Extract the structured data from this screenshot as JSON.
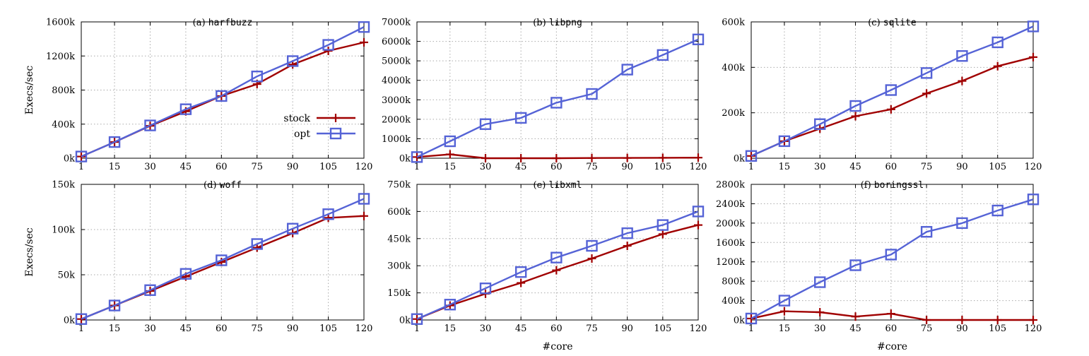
{
  "figure": {
    "ylabel": "Execs/sec",
    "xlabel": "#core",
    "legend": {
      "placement": "inside-right of panel (a)",
      "entries": [
        {
          "name": "stock",
          "color": "#a00000",
          "marker": "plus"
        },
        {
          "name": "opt",
          "color": "#5563d6",
          "marker": "square"
        }
      ]
    }
  },
  "chart_data": [
    {
      "type": "line",
      "title_prefix": "(a)",
      "title_name": "harfbuzz",
      "x": [
        1,
        15,
        30,
        45,
        60,
        75,
        90,
        105,
        120
      ],
      "xticks": [
        "1",
        "15",
        "30",
        "45",
        "60",
        "75",
        "90",
        "105",
        "120"
      ],
      "ylim": [
        0,
        1600
      ],
      "yticks": [
        0,
        400,
        800,
        1200,
        1600
      ],
      "ytick_labels": [
        "0k",
        "400k",
        "800k",
        "1200k",
        "1600k"
      ],
      "ylabel": "Execs/sec",
      "xlabel": "",
      "grid": true,
      "series": [
        {
          "name": "stock",
          "values": [
            20,
            190,
            380,
            550,
            730,
            870,
            1100,
            1260,
            1360
          ]
        },
        {
          "name": "opt",
          "values": [
            20,
            190,
            385,
            575,
            730,
            960,
            1140,
            1330,
            1540
          ]
        }
      ]
    },
    {
      "type": "line",
      "title_prefix": "(b)",
      "title_name": "libpng",
      "x": [
        1,
        15,
        30,
        45,
        60,
        75,
        90,
        105,
        120
      ],
      "xticks": [
        "1",
        "15",
        "30",
        "45",
        "60",
        "75",
        "90",
        "105",
        "120"
      ],
      "ylim": [
        0,
        7000
      ],
      "yticks": [
        0,
        1000,
        2000,
        3000,
        4000,
        5000,
        6000,
        7000
      ],
      "ytick_labels": [
        "0k",
        "1000k",
        "2000k",
        "3000k",
        "4000k",
        "5000k",
        "6000k",
        "7000k"
      ],
      "ylabel": "",
      "xlabel": "",
      "grid": true,
      "series": [
        {
          "name": "stock",
          "values": [
            60,
            200,
            0,
            0,
            0,
            10,
            15,
            20,
            30
          ]
        },
        {
          "name": "opt",
          "values": [
            60,
            870,
            1750,
            2070,
            2850,
            3300,
            4550,
            5300,
            6100
          ]
        }
      ]
    },
    {
      "type": "line",
      "title_prefix": "(c)",
      "title_name": "sqlite",
      "x": [
        1,
        15,
        30,
        45,
        60,
        75,
        90,
        105,
        120
      ],
      "xticks": [
        "1",
        "15",
        "30",
        "45",
        "60",
        "75",
        "90",
        "105",
        "120"
      ],
      "ylim": [
        0,
        600
      ],
      "yticks": [
        0,
        200,
        400,
        600
      ],
      "ytick_labels": [
        "0k",
        "200k",
        "400k",
        "600k"
      ],
      "ylabel": "",
      "xlabel": "",
      "grid": true,
      "series": [
        {
          "name": "stock",
          "values": [
            10,
            75,
            130,
            185,
            215,
            285,
            340,
            405,
            445
          ]
        },
        {
          "name": "opt",
          "values": [
            10,
            75,
            150,
            230,
            300,
            375,
            450,
            510,
            580
          ]
        }
      ]
    },
    {
      "type": "line",
      "title_prefix": "(d)",
      "title_name": "woff",
      "x": [
        1,
        15,
        30,
        45,
        60,
        75,
        90,
        105,
        120
      ],
      "xticks": [
        "1",
        "15",
        "30",
        "45",
        "60",
        "75",
        "90",
        "105",
        "120"
      ],
      "ylim": [
        0,
        150
      ],
      "yticks": [
        0,
        50,
        100,
        150
      ],
      "ytick_labels": [
        "0k",
        "50k",
        "100k",
        "150k"
      ],
      "ylabel": "Execs/sec",
      "xlabel": "",
      "grid": true,
      "series": [
        {
          "name": "stock",
          "values": [
            1,
            16,
            32,
            48,
            64,
            80,
            96,
            113,
            115
          ]
        },
        {
          "name": "opt",
          "values": [
            1,
            16,
            33,
            51,
            66,
            84,
            101,
            117,
            134
          ]
        }
      ]
    },
    {
      "type": "line",
      "title_prefix": "(e)",
      "title_name": "libxml",
      "x": [
        1,
        15,
        30,
        45,
        60,
        75,
        90,
        105,
        120
      ],
      "xticks": [
        "1",
        "15",
        "30",
        "45",
        "60",
        "75",
        "90",
        "105",
        "120"
      ],
      "ylim": [
        0,
        750
      ],
      "yticks": [
        0,
        150,
        300,
        450,
        600,
        750
      ],
      "ytick_labels": [
        "0k",
        "150k",
        "300k",
        "450k",
        "600k",
        "750k"
      ],
      "ylabel": "",
      "xlabel": "#core",
      "grid": true,
      "series": [
        {
          "name": "stock",
          "values": [
            5,
            80,
            145,
            205,
            275,
            340,
            410,
            475,
            525
          ]
        },
        {
          "name": "opt",
          "values": [
            5,
            85,
            175,
            265,
            345,
            410,
            480,
            525,
            600
          ]
        }
      ]
    },
    {
      "type": "line",
      "title_prefix": "(f)",
      "title_name": "boringssl",
      "x": [
        1,
        15,
        30,
        45,
        60,
        75,
        90,
        105,
        120
      ],
      "xticks": [
        "1",
        "15",
        "30",
        "45",
        "60",
        "75",
        "90",
        "105",
        "120"
      ],
      "ylim": [
        0,
        2800
      ],
      "yticks": [
        0,
        400,
        800,
        1200,
        1600,
        2000,
        2400,
        2800
      ],
      "ytick_labels": [
        "0k",
        "400k",
        "800k",
        "1200k",
        "1600k",
        "2000k",
        "2400k",
        "2800k"
      ],
      "ylabel": "",
      "xlabel": "#core",
      "grid": true,
      "series": [
        {
          "name": "stock",
          "values": [
            30,
            180,
            160,
            70,
            130,
            0,
            0,
            0,
            0
          ]
        },
        {
          "name": "opt",
          "values": [
            30,
            400,
            780,
            1130,
            1350,
            1820,
            2000,
            2260,
            2490
          ]
        }
      ]
    }
  ]
}
